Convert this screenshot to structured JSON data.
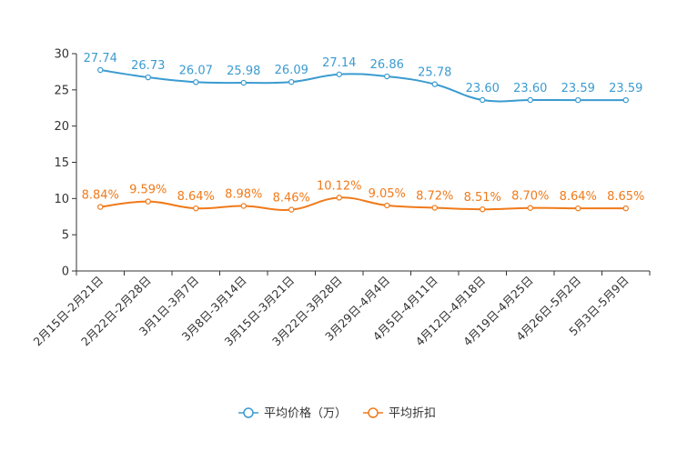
{
  "chart_data": {
    "type": "line",
    "categories": [
      "2月15日-2月21日",
      "2月22日-2月28日",
      "3月1日-3月7日",
      "3月8日-3月14日",
      "3月15日-3月21日",
      "3月22日-3月28日",
      "3月29日-4月4日",
      "4月5日-4月11日",
      "4月12日-4月18日",
      "4月19日-4月25日",
      "4月26日-5月2日",
      "5月3日-5月9日"
    ],
    "ylim": [
      0,
      30
    ],
    "yticks": [
      0,
      5,
      10,
      15,
      20,
      25,
      30
    ],
    "series": [
      {
        "name": "平均价格（万）",
        "color": "#3b9bd0",
        "values": [
          27.74,
          26.73,
          26.07,
          25.98,
          26.09,
          27.14,
          26.86,
          25.78,
          23.6,
          23.6,
          23.59,
          23.59
        ],
        "labels": [
          "27.74",
          "26.73",
          "26.07",
          "25.98",
          "26.09",
          "27.14",
          "26.86",
          "25.78",
          "23.60",
          "23.60",
          "23.59",
          "23.59"
        ]
      },
      {
        "name": "平均折扣",
        "color": "#f07a1a",
        "values": [
          8.84,
          9.59,
          8.64,
          8.98,
          8.46,
          10.12,
          9.05,
          8.72,
          8.51,
          8.7,
          8.64,
          8.65
        ],
        "labels": [
          "8.84%",
          "9.59%",
          "8.64%",
          "8.98%",
          "8.46%",
          "10.12%",
          "9.05%",
          "8.72%",
          "8.51%",
          "8.70%",
          "8.64%",
          "8.65%"
        ]
      }
    ],
    "legend_position": "bottom-center"
  }
}
